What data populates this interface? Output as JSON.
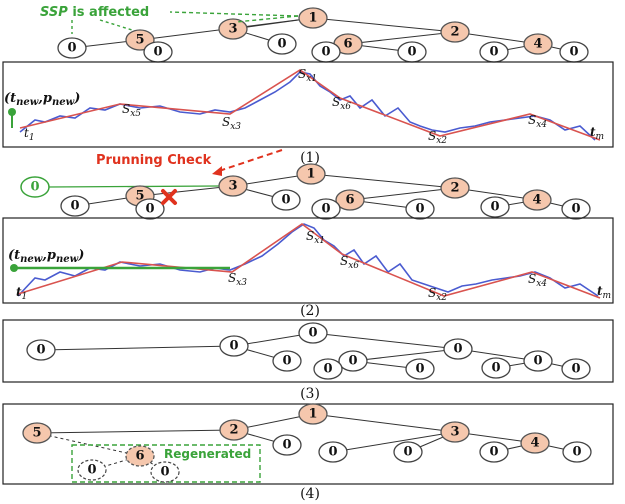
{
  "panel1": {
    "annotation_ssp": "SSP",
    "annotation_rest": " is affected",
    "new_point": "(t",
    "new_point_sub": "new",
    "new_point_mid": ",p",
    "new_point_sub2": "new",
    "new_point_end": ")",
    "t_start": "t",
    "t_start_sub": "1",
    "t_end": "t",
    "t_end_sub": "m",
    "labels": {
      "sx1": "S",
      "sx1_sub": "x1",
      "sx5": "S",
      "sx5_sub": "x5",
      "sx3": "S",
      "sx3_sub": "x3",
      "sx6": "S",
      "sx6_sub": "x6",
      "sx2": "S",
      "sx2_sub": "x2",
      "sx4": "S",
      "sx4_sub": "x4"
    },
    "caption": "(1)"
  },
  "panel2": {
    "pruning": "Prunning Check",
    "new_point": "(t",
    "new_point_sub": "new",
    "new_point_mid": ",p",
    "new_point_sub2": "new",
    "new_point_end": ")",
    "t_start": "t",
    "t_start_sub": "1",
    "t_end": "t",
    "t_end_sub": "m",
    "labels": {
      "sx1": "S",
      "sx1_sub": "x1",
      "sx3": "S",
      "sx3_sub": "x3",
      "sx6": "S",
      "sx6_sub": "x6",
      "sx2": "S",
      "sx2_sub": "x2",
      "sx4": "S",
      "sx4_sub": "x4"
    },
    "caption": "(2)"
  },
  "panel3": {
    "caption": "(3)"
  },
  "panel4": {
    "regenerated": "Regenerated",
    "caption": "(4)"
  },
  "nodes": {
    "zero": "0",
    "one": "1",
    "two": "2",
    "three": "3",
    "four": "4",
    "five": "5",
    "six": "6"
  },
  "colors": {
    "highlight_node": "#f5c7ad",
    "green": "#3aa33a",
    "red": "#e0321e",
    "blue_series": "#4a5bd0",
    "red_series": "#d9534f"
  }
}
